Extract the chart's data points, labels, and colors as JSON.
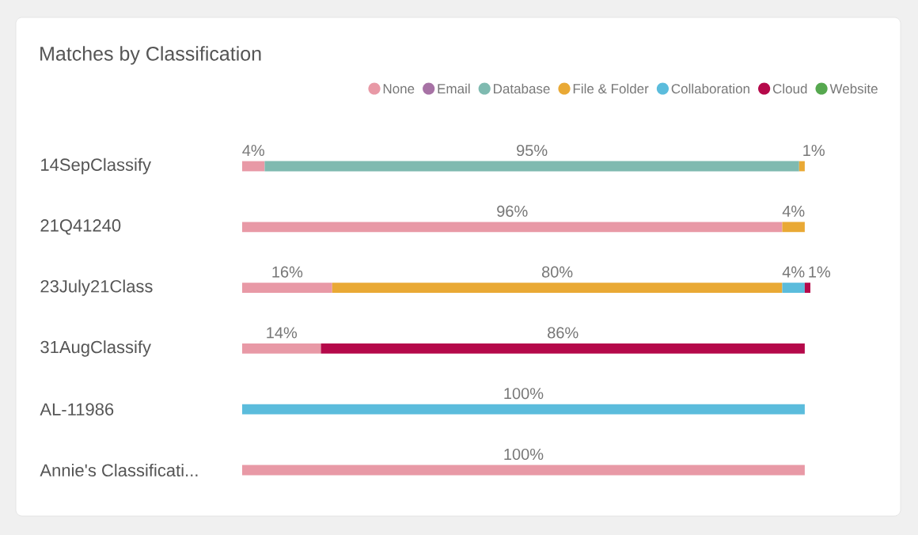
{
  "chart_data": {
    "type": "bar",
    "title": "Matches by Classification",
    "orientation": "horizontal",
    "stacked": true,
    "legend": "top right",
    "tick_labels": "y",
    "categories": [
      "14SepClassify",
      "21Q41240",
      "23July21Class",
      "31AugClassify",
      "AL-11986",
      "Annie's Classificati..."
    ],
    "series": [
      {
        "name": "None",
        "color": "#e899a6",
        "values": [
          4,
          96,
          16,
          14,
          null,
          100
        ],
        "value_labels": [
          "4%",
          "96%",
          "16%",
          "14%",
          null,
          "100%"
        ]
      },
      {
        "name": "Email",
        "color": "#a772a5",
        "values": [
          null,
          null,
          null,
          null,
          null,
          null
        ],
        "value_labels": [
          null,
          null,
          null,
          null,
          null,
          null
        ]
      },
      {
        "name": "Database",
        "color": "#7fbab0",
        "values": [
          95,
          null,
          null,
          null,
          null,
          null
        ],
        "value_labels": [
          "95%",
          null,
          null,
          null,
          null,
          null
        ]
      },
      {
        "name": "File & Folder",
        "color": "#e9a935",
        "values": [
          1,
          4,
          80,
          null,
          null,
          null
        ],
        "value_labels": [
          "1%",
          "4%",
          "80%",
          null,
          null,
          null
        ]
      },
      {
        "name": "Collaboration",
        "color": "#5bbcdc",
        "values": [
          null,
          null,
          4,
          null,
          100,
          null
        ],
        "value_labels": [
          null,
          null,
          "4%",
          null,
          "100%",
          null
        ]
      },
      {
        "name": "Cloud",
        "color": "#b5094a",
        "values": [
          null,
          null,
          1,
          86,
          null,
          null
        ],
        "value_labels": [
          null,
          null,
          "1%",
          "86%",
          null,
          null
        ]
      },
      {
        "name": "Website",
        "color": "#56a84f",
        "values": [
          null,
          null,
          null,
          null,
          null,
          null
        ],
        "value_labels": [
          null,
          null,
          null,
          null,
          null,
          null
        ]
      }
    ]
  }
}
